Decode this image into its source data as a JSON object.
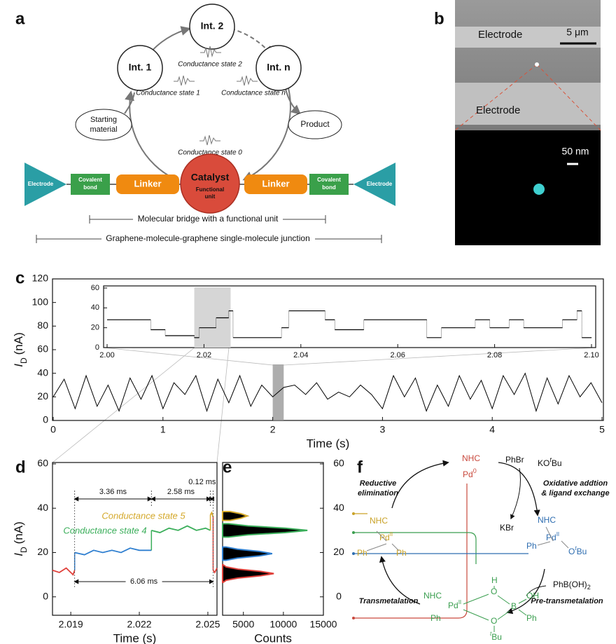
{
  "panel_labels": [
    "a",
    "b",
    "c",
    "d",
    "e",
    "f"
  ],
  "panel_a": {
    "intermediates": [
      "Int. 1",
      "Int. 2",
      "Int. n"
    ],
    "conductance_states": [
      "Conductance state 2",
      "Conductance state 1",
      "Conductance state n",
      "Conductance state 0"
    ],
    "starting_material": [
      "Starting",
      "material"
    ],
    "product": "Product",
    "bridge": {
      "electrode_left": "Electrode",
      "covalent_left": [
        "Covalent",
        "bond"
      ],
      "linker_left": "Linker",
      "catalyst": "Catalyst",
      "functional_unit": [
        "Functional",
        "unit"
      ],
      "linker_right": "Linker",
      "covalent_right": [
        "Covalent",
        "bond"
      ],
      "electrode_right": "Electrode"
    },
    "bridge_span": "Molecular bridge with a functional unit",
    "junction_span": "Graphene-molecule-graphene single-molecule junction"
  },
  "panel_b": {
    "electrode_top": "Electrode",
    "electrode_bottom": "Electrode",
    "scale_top": "5 μm",
    "scale_bottom": "50 nm"
  },
  "chart_data": [
    {
      "type": "line",
      "xlabel": "Time (s)",
      "ylabel": {
        "symbol": "I",
        "subscript": "D",
        "unit": "(nA)"
      },
      "xlim": [
        0,
        5
      ],
      "xticks": [
        0,
        1,
        2,
        3,
        4,
        5
      ],
      "ylim": [
        0,
        120
      ],
      "yticks": [
        0,
        20,
        40,
        60,
        80,
        100,
        120
      ],
      "color": "#000000",
      "highlight_xlim": [
        2.0,
        2.1
      ],
      "x": [
        0,
        0.1,
        0.2,
        0.3,
        0.4,
        0.5,
        0.6,
        0.7,
        0.8,
        0.9,
        1.0,
        1.1,
        1.2,
        1.3,
        1.4,
        1.5,
        1.6,
        1.7,
        1.8,
        1.9,
        2.0,
        2.1,
        2.2,
        2.3,
        2.4,
        2.5,
        2.6,
        2.7,
        2.8,
        2.9,
        3.0,
        3.1,
        3.2,
        3.3,
        3.4,
        3.5,
        3.6,
        3.7,
        3.8,
        3.9,
        4.0,
        4.1,
        4.2,
        4.3,
        4.4,
        4.5,
        4.6,
        4.7,
        4.8,
        4.9,
        5.0
      ],
      "values": [
        20,
        35,
        10,
        38,
        12,
        30,
        8,
        36,
        18,
        38,
        10,
        32,
        22,
        38,
        8,
        35,
        15,
        38,
        12,
        30,
        20,
        28,
        30,
        22,
        32,
        18,
        24,
        20,
        30,
        22,
        10,
        38,
        20,
        36,
        8,
        30,
        12,
        38,
        18,
        34,
        10,
        38,
        22,
        40,
        8,
        36,
        14,
        38,
        20,
        32,
        15
      ]
    },
    {
      "type": "step",
      "xlim": [
        2.0,
        2.1
      ],
      "xticks": [
        {
          "value": 2.0,
          "label": "2.00"
        },
        2.02,
        2.04,
        2.06,
        2.08,
        {
          "value": 2.1,
          "label": "2.10"
        }
      ],
      "ylim": [
        0,
        60
      ],
      "yticks": [
        0,
        20,
        40,
        60
      ],
      "color": "#000000",
      "highlight_xlim": [
        2.018,
        2.0255
      ],
      "x": [
        2.0,
        2.009,
        2.012,
        2.018,
        2.019,
        2.0225,
        2.0251,
        2.026,
        2.031,
        2.036,
        2.0375,
        2.045,
        2.047,
        2.053,
        2.066,
        2.069,
        2.076,
        2.079,
        2.083,
        2.086,
        2.094,
        2.097,
        2.098,
        2.1
      ],
      "values": [
        28,
        18,
        12,
        10,
        20,
        30,
        37,
        10,
        10,
        20,
        37,
        28,
        18,
        28,
        10,
        20,
        28,
        20,
        28,
        20,
        28,
        37,
        10,
        10
      ]
    },
    {
      "type": "line",
      "xlabel": "Time (s)",
      "ylabel": {
        "symbol": "I",
        "subscript": "D",
        "unit": "(nA)"
      },
      "xlim": [
        2.0182,
        2.0254
      ],
      "xticks": [
        2.019,
        2.022,
        2.025
      ],
      "ylim": [
        -8,
        60
      ],
      "yticks": [
        0,
        20,
        40,
        60
      ],
      "series": [
        {
          "color": "#e0403a",
          "x": [
            2.0182,
            2.0185,
            2.0188,
            2.0191,
            2.01917
          ],
          "values": [
            12,
            11,
            13,
            10,
            12
          ]
        },
        {
          "color": "#2f7fd0",
          "x": [
            2.01917,
            2.0196,
            2.02,
            2.0204,
            2.0208,
            2.0212,
            2.0216,
            2.022,
            2.02253
          ],
          "values": [
            20,
            19,
            21,
            20,
            21,
            20,
            22,
            21,
            21
          ]
        },
        {
          "color": "#3aae5a",
          "x": [
            2.02253,
            2.0229,
            2.0233,
            2.0237,
            2.0241,
            2.0245,
            2.0249,
            2.02511
          ],
          "values": [
            30,
            29,
            31,
            30,
            32,
            30,
            31,
            30
          ]
        },
        {
          "color": "#d4a82a",
          "x": [
            2.02511,
            2.02517,
            2.02523
          ],
          "values": [
            37,
            38,
            36
          ]
        },
        {
          "color": "#e0403a",
          "x": [
            2.02523,
            2.0253,
            2.0254
          ],
          "values": [
            12,
            11,
            13
          ]
        }
      ],
      "intervals": [
        {
          "label": "3.36 ms",
          "x": [
            2.01917,
            2.02253
          ]
        },
        {
          "label": "2.58 ms",
          "x": [
            2.02253,
            2.02511
          ]
        },
        {
          "label": "0.12 ms",
          "x": [
            2.02511,
            2.02523
          ]
        },
        {
          "label": "6.06 ms",
          "x": [
            2.01917,
            2.02523
          ]
        }
      ],
      "annotations": [
        {
          "text": "Conductance state 5",
          "color": "#d4a82a"
        },
        {
          "text": "Conductance state 4",
          "color": "#3aae5a"
        }
      ]
    },
    {
      "type": "area",
      "orientation": "horizontal",
      "xlabel": "Counts",
      "xlim": [
        2400,
        15000
      ],
      "xticks": [
        5000,
        10000,
        15000
      ],
      "ylim": [
        -8,
        60
      ],
      "yticks": [
        0,
        20,
        40,
        60
      ],
      "fill": "#000000",
      "series": [
        {
          "color": "#e0403a",
          "y": [
            6.5,
            7.5,
            8.5,
            9.5,
            10.5,
            11.5,
            12.5,
            13.5,
            14.5
          ],
          "values": [
            2450,
            2850,
            4320,
            7140,
            8800,
            7140,
            4320,
            2850,
            2450
          ]
        },
        {
          "color": "#2f7fd0",
          "y": [
            16.5,
            17.5,
            18.5,
            19.5,
            20.5,
            21.5,
            22.5
          ],
          "values": [
            2830,
            4260,
            6990,
            8600,
            6990,
            4260,
            2830
          ]
        },
        {
          "color": "#3aae5a",
          "y": [
            27,
            28,
            29,
            30,
            31,
            32,
            33
          ],
          "values": [
            3140,
            5580,
            10240,
            13000,
            10240,
            5580,
            3140
          ]
        },
        {
          "color": "#d4a82a",
          "y": [
            34.5,
            35.5,
            36.5,
            37.5,
            38.5
          ],
          "values": [
            3340,
            4700,
            5500,
            4700,
            3340
          ]
        }
      ]
    }
  ],
  "panel_f": {
    "pd0": {
      "ligand": "NHC",
      "metal": "Pd",
      "oxidation": "0"
    },
    "reagent_1": "PhBr",
    "reagent_2": {
      "base": "KO",
      "sup": "t",
      "rest": "Bu"
    },
    "step_1": [
      "Oxidative addtion",
      "& ligand exchange"
    ],
    "byproduct": "KBr",
    "pd_blue": {
      "ligand": "NHC",
      "metal": "Pd",
      "oxidation": "II",
      "aryl": "Ph",
      "alkoxide": "O",
      "alkoxide_sup": "t",
      "alkoxide_rest": "Bu"
    },
    "reagent_3": {
      "main": "PhB(OH)",
      "sub": "2"
    },
    "step_2": "Pre-transmetalation",
    "pd_green": {
      "ligand": "NHC",
      "metal": "Pd",
      "oxidation": "II",
      "aryl": "Ph",
      "h": "H",
      "o_top": "O",
      "boron": "B",
      "oh": "OH",
      "b_aryl": "Ph",
      "o_bottom": "O",
      "o_sup": "t",
      "o_rest": "Bu"
    },
    "step_3": "Transmetalation",
    "pd_gold": {
      "ligand": "NHC",
      "metal": "Pd",
      "oxidation": "II",
      "aryl_1": "Ph",
      "aryl_2": "Ph"
    },
    "step_4": [
      "Reductive",
      "elimination"
    ]
  }
}
